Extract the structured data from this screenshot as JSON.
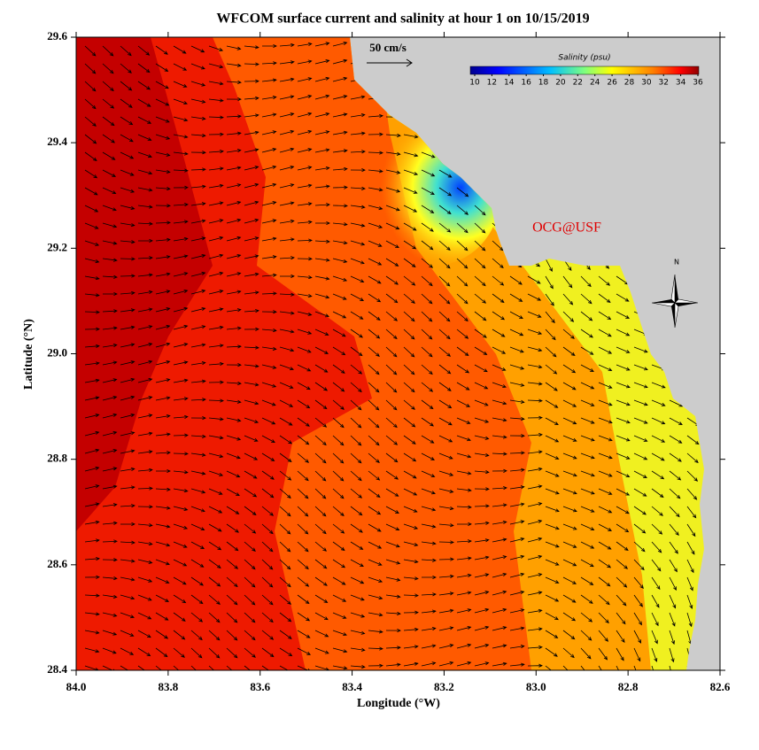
{
  "chart_data": {
    "type": "map",
    "title": "WFCOM surface current and salinity at hour 1 on 10/15/2019",
    "xlabel": "Longitude (°W)",
    "ylabel": "Latitude (°N)",
    "xlim": [
      84,
      82.6
    ],
    "ylim": [
      28.4,
      29.6
    ],
    "xticks": [
      {
        "value": 84,
        "label": "84.0"
      },
      83.8,
      83.6,
      83.4,
      83.2,
      {
        "value": 83,
        "label": "83.0"
      },
      82.8,
      82.6
    ],
    "yticks": [
      28.4,
      28.6,
      28.8,
      {
        "value": 29,
        "label": "29.0"
      },
      29.2,
      29.4,
      29.6
    ],
    "colorbar": {
      "label": "Salinity (psu)",
      "lim": [
        10,
        36
      ],
      "ticks": [
        10,
        12,
        14,
        16,
        18,
        20,
        22,
        24,
        26,
        28,
        30,
        32,
        34,
        36
      ]
    },
    "scale_label": "50 cm/s",
    "credit": "OCG@USF",
    "north_label": "N"
  }
}
